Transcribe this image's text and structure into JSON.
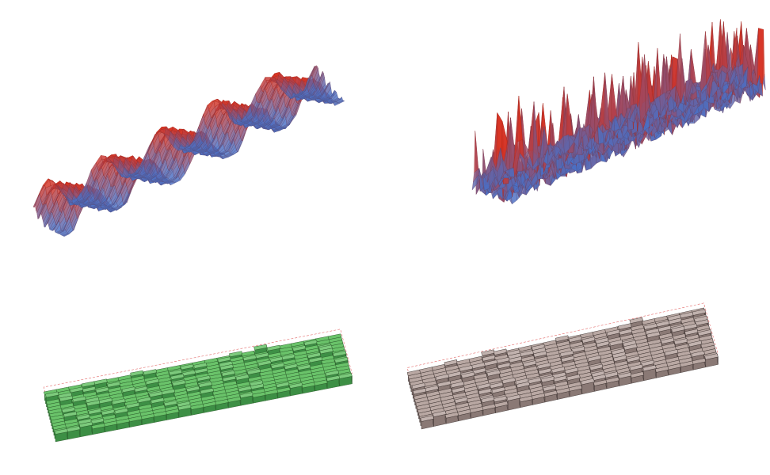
{
  "figure": {
    "panels": [
      {
        "kind": "surface-mesh",
        "pattern": "smooth-diagonal-waves",
        "colors": {
          "peak": "#d7301f",
          "valley": "#4a6fc4"
        }
      },
      {
        "kind": "surface-mesh",
        "pattern": "noisy-spikes",
        "colors": {
          "peak": "#d7301f",
          "valley": "#4a6fc4"
        }
      },
      {
        "kind": "voxel-slab",
        "colors": {
          "top": "#6ac36a",
          "side": "#3d8f45",
          "edge": "#2a5a2a",
          "outline": "#e36b6b"
        }
      },
      {
        "kind": "voxel-slab",
        "colors": {
          "top": "#b9a8a3",
          "side": "#8a7975",
          "edge": "#3a302e",
          "outline": "#e36b6b"
        }
      }
    ]
  }
}
